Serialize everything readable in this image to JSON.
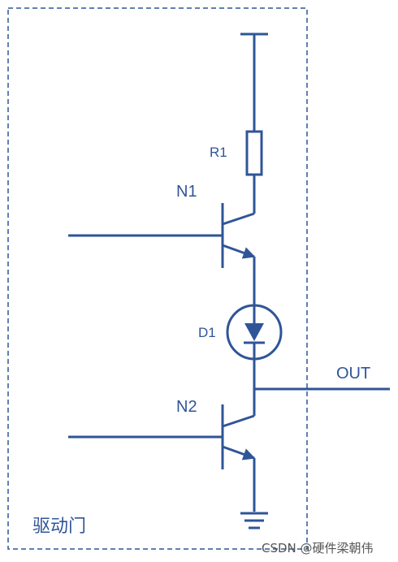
{
  "labels": {
    "r1": "R1",
    "n1": "N1",
    "d1": "D1",
    "n2": "N2",
    "out": "OUT",
    "block": "驱动门"
  },
  "watermark": "CSDN @硬件梁朝伟",
  "colors": {
    "line": "#2f5597",
    "border": "#2f5597",
    "watermark": "#555555"
  }
}
